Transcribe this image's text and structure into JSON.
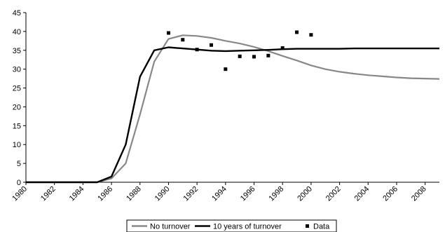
{
  "chart_data": {
    "type": "line",
    "title": "",
    "xlabel": "",
    "ylabel": "",
    "xlim": [
      1980,
      2009
    ],
    "ylim": [
      0,
      45
    ],
    "yticks": [
      0,
      5,
      10,
      15,
      20,
      25,
      30,
      35,
      40,
      45
    ],
    "xticks": [
      1980,
      1982,
      1984,
      1986,
      1988,
      1990,
      1992,
      1994,
      1996,
      1998,
      2000,
      2002,
      2004,
      2006,
      2008
    ],
    "grid": false,
    "legend_position": "bottom",
    "series": [
      {
        "name": "No turnover",
        "kind": "line",
        "color": "#888888",
        "x": [
          1980,
          1981,
          1982,
          1983,
          1984,
          1985,
          1986,
          1987,
          1988,
          1989,
          1990,
          1991,
          1992,
          1993,
          1994,
          1995,
          1996,
          1997,
          1998,
          1999,
          2000,
          2001,
          2002,
          2003,
          2004,
          2005,
          2006,
          2007,
          2008,
          2009
        ],
        "y": [
          0,
          0,
          0,
          0,
          0,
          0,
          1,
          5,
          18,
          32,
          38,
          39,
          38.8,
          38.3,
          37.5,
          36.8,
          35.9,
          34.8,
          33.5,
          32.3,
          31.0,
          30.0,
          29.3,
          28.8,
          28.4,
          28.1,
          27.8,
          27.6,
          27.5,
          27.4
        ]
      },
      {
        "name": "10 years of turnover",
        "kind": "line",
        "color": "#000000",
        "x": [
          1980,
          1981,
          1982,
          1983,
          1984,
          1985,
          1986,
          1987,
          1988,
          1989,
          1990,
          1991,
          1992,
          1993,
          1994,
          1995,
          1996,
          1997,
          1998,
          1999,
          2000,
          2001,
          2002,
          2003,
          2004,
          2005,
          2006,
          2007,
          2008,
          2009
        ],
        "y": [
          0,
          0,
          0,
          0,
          0,
          0,
          1.5,
          10,
          28,
          35,
          35.8,
          35.5,
          35.2,
          34.9,
          34.8,
          34.9,
          35.0,
          35.1,
          35.3,
          35.4,
          35.4,
          35.4,
          35.4,
          35.5,
          35.5,
          35.5,
          35.5,
          35.5,
          35.5,
          35.5
        ]
      },
      {
        "name": "Data",
        "kind": "scatter",
        "color": "#000000",
        "x": [
          1990,
          1991,
          1992,
          1993,
          1994,
          1995,
          1996,
          1997,
          1998,
          1999,
          2000
        ],
        "y": [
          39.6,
          37.8,
          35.2,
          36.4,
          30.0,
          33.4,
          33.3,
          33.6,
          35.6,
          39.8,
          39.1
        ]
      }
    ]
  }
}
